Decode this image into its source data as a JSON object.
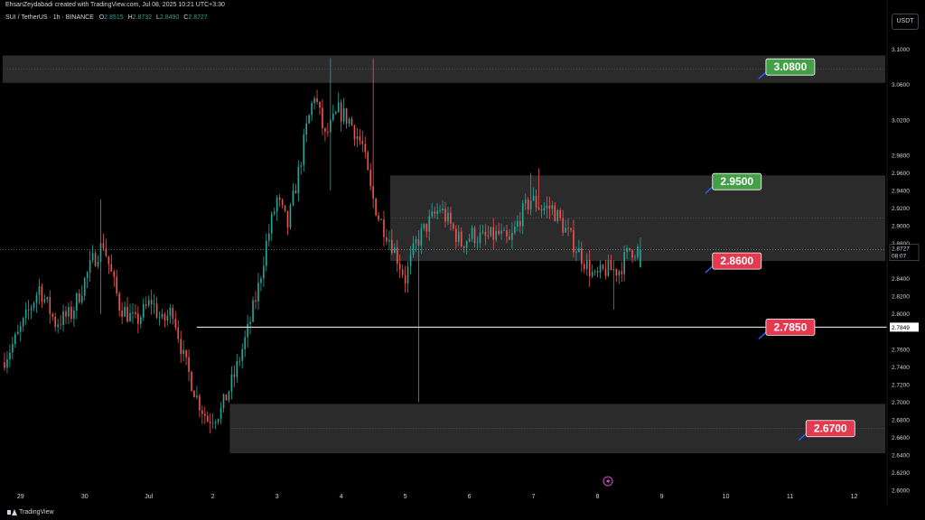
{
  "header": {
    "attribution": "EhsanZeydabadi created with TradingView.com, Jul 08, 2025 10:21 UTC+3:30"
  },
  "symbol": {
    "name": "SUI / TetherUS · 1h · BINANCE",
    "o_label": "O",
    "o_value": "2.8515",
    "h_label": "H",
    "h_value": "2.8732",
    "l_label": "L",
    "l_value": "2.8490",
    "c_label": "C",
    "c_value": "2.8727"
  },
  "currency_button": "USDT",
  "footer": {
    "brand": "TradingView"
  },
  "colors": {
    "background": "#000000",
    "bull": "#26a69a",
    "bear": "#ef5350",
    "zone": "#2b2b2b",
    "green_label": "#43a047",
    "red_label": "#e53950",
    "axis_text": "#d1d4dc",
    "line": "#ffffff"
  },
  "chart_data": {
    "type": "candlestick",
    "ylim": [
      2.595,
      3.115
    ],
    "y_ticks": [
      "3.1000",
      "3.0600",
      "3.0200",
      "2.9800",
      "2.9600",
      "2.9400",
      "2.9200",
      "2.9000",
      "2.8800",
      "2.8400",
      "2.8200",
      "2.8000",
      "2.7600",
      "2.7400",
      "2.7200",
      "2.7000",
      "2.6800",
      "2.6600",
      "2.6400",
      "2.6200",
      "2.6000"
    ],
    "x_ticks": [
      {
        "label": "29",
        "slot": 6
      },
      {
        "label": "30",
        "slot": 30
      },
      {
        "label": "Jul",
        "slot": 54
      },
      {
        "label": "2",
        "slot": 78
      },
      {
        "label": "3",
        "slot": 102
      },
      {
        "label": "4",
        "slot": 126
      },
      {
        "label": "5",
        "slot": 150
      },
      {
        "label": "6",
        "slot": 174
      },
      {
        "label": "7",
        "slot": 198
      },
      {
        "label": "8",
        "slot": 222
      },
      {
        "label": "9",
        "slot": 246
      },
      {
        "label": "10",
        "slot": 270
      },
      {
        "label": "11",
        "slot": 294
      },
      {
        "label": "12",
        "slot": 318
      }
    ],
    "total_slots": 330,
    "candles_count": 239,
    "anchors": [
      [
        0,
        2.745
      ],
      [
        6,
        2.775
      ],
      [
        14,
        2.83
      ],
      [
        20,
        2.79
      ],
      [
        26,
        2.8
      ],
      [
        34,
        2.86
      ],
      [
        38,
        2.88
      ],
      [
        44,
        2.81
      ],
      [
        50,
        2.79
      ],
      [
        56,
        2.815
      ],
      [
        60,
        2.79
      ],
      [
        64,
        2.805
      ],
      [
        68,
        2.75
      ],
      [
        73,
        2.705
      ],
      [
        77,
        2.68
      ],
      [
        82,
        2.69
      ],
      [
        87,
        2.73
      ],
      [
        92,
        2.78
      ],
      [
        96,
        2.83
      ],
      [
        99,
        2.88
      ],
      [
        103,
        2.93
      ],
      [
        107,
        2.9
      ],
      [
        111,
        2.96
      ],
      [
        114,
        3.01
      ],
      [
        117,
        3.05
      ],
      [
        121,
        3.0
      ],
      [
        126,
        3.03
      ],
      [
        130,
        3.02
      ],
      [
        135,
        2.99
      ],
      [
        138,
        2.94
      ],
      [
        141,
        2.91
      ],
      [
        146,
        2.88
      ],
      [
        151,
        2.84
      ],
      [
        155,
        2.88
      ],
      [
        159,
        2.9
      ],
      [
        164,
        2.92
      ],
      [
        168,
        2.9
      ],
      [
        172,
        2.88
      ],
      [
        176,
        2.89
      ],
      [
        180,
        2.885
      ],
      [
        186,
        2.89
      ],
      [
        190,
        2.88
      ],
      [
        194,
        2.91
      ],
      [
        198,
        2.93
      ],
      [
        202,
        2.92
      ],
      [
        206,
        2.92
      ],
      [
        210,
        2.9
      ],
      [
        214,
        2.88
      ],
      [
        218,
        2.86
      ],
      [
        222,
        2.84
      ],
      [
        226,
        2.85
      ],
      [
        231,
        2.85
      ],
      [
        235,
        2.873
      ]
    ],
    "spikes": [
      {
        "index": 36,
        "high": 2.93,
        "low": 2.8
      },
      {
        "index": 122,
        "high": 3.09,
        "low": 2.94
      },
      {
        "index": 138,
        "high": 3.09,
        "low": 2.92
      },
      {
        "index": 155,
        "low": 2.7
      },
      {
        "index": 197,
        "high": 2.96
      },
      {
        "index": 200,
        "high": 2.965
      },
      {
        "index": 228,
        "low": 2.805
      }
    ],
    "current_price": "2.8727",
    "countdown": "08:07",
    "horizontal_line": {
      "value": 2.785,
      "label": "2.7849",
      "from_slot": 72
    },
    "zones": [
      {
        "top": 3.093,
        "bottom": 3.062,
        "from_slot": 0
      },
      {
        "top": 2.957,
        "bottom": 2.86,
        "from_slot": 145
      },
      {
        "top": 2.698,
        "bottom": 2.642,
        "from_slot": 85
      }
    ],
    "price_labels": [
      {
        "text": "3.0800",
        "value": 3.08,
        "kind": "green",
        "x_slot": 285
      },
      {
        "text": "2.9500",
        "value": 2.95,
        "kind": "green",
        "x_slot": 265
      },
      {
        "text": "2.8600",
        "value": 2.86,
        "kind": "red",
        "x_slot": 265
      },
      {
        "text": "2.7850",
        "value": 2.785,
        "kind": "red",
        "x_slot": 285
      },
      {
        "text": "2.6700",
        "value": 2.67,
        "kind": "red",
        "x_slot": 300
      }
    ]
  }
}
